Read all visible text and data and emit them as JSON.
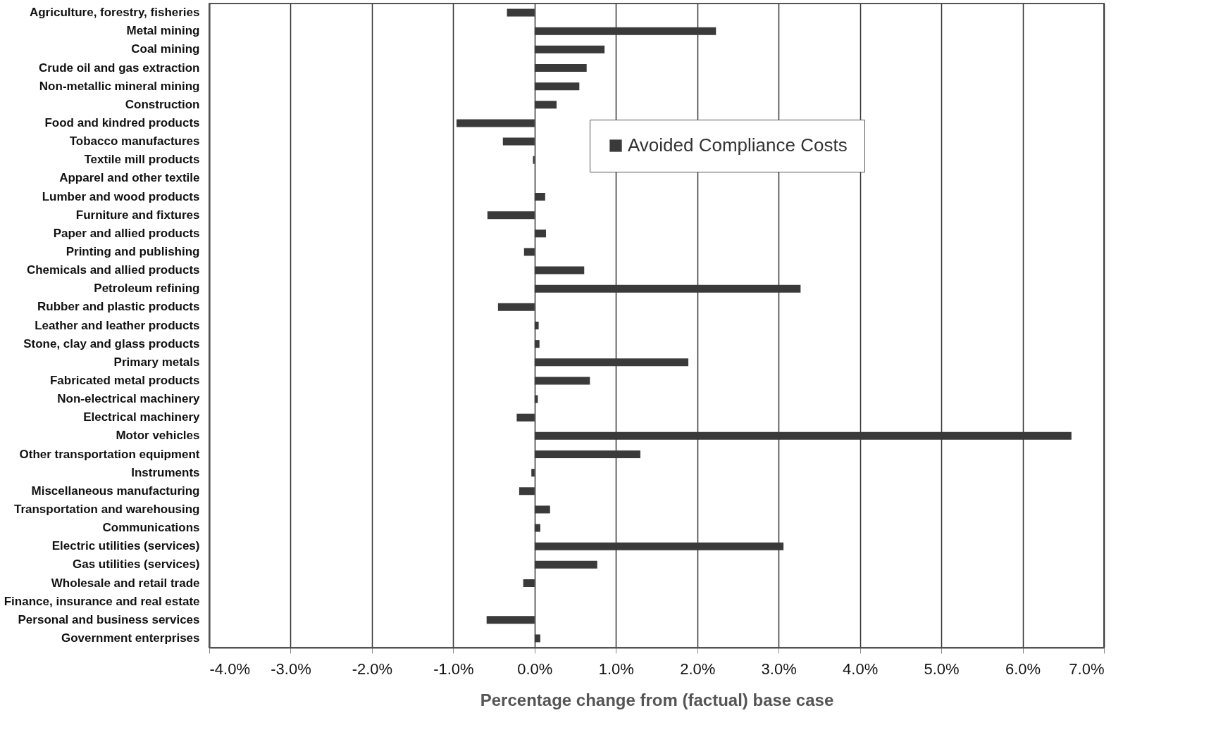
{
  "chart_data": {
    "type": "bar",
    "orientation": "horizontal",
    "xlabel": "Percentage change from (factual) base case",
    "categories": [
      "Agriculture, forestry, fisheries",
      "Metal mining",
      "Coal mining",
      "Crude oil and gas extraction",
      "Non-metallic mineral mining",
      "Construction",
      "Food and kindred products",
      "Tobacco manufactures",
      "Textile mill products",
      "Apparel and other textile",
      "Lumber and wood products",
      "Furniture and fixtures",
      "Paper and allied products",
      "Printing and publishing",
      "Chemicals and allied products",
      "Petroleum refining",
      "Rubber and plastic products",
      "Leather and leather products",
      "Stone, clay and glass products",
      "Primary metals",
      "Fabricated metal products",
      "Non-electrical machinery",
      "Electrical machinery",
      "Motor vehicles",
      "Other transportation equipment",
      "Instruments",
      "Miscellaneous manufacturing",
      "Transportation and warehousing",
      "Communications",
      "Electric utilities (services)",
      "Gas utilities (services)",
      "Wholesale and retail trade",
      "Finance, insurance and real estate",
      "Personal and business services",
      "Government enterprises"
    ],
    "series": [
      {
        "name": "Avoided Compliance Costs",
        "color": "#3a3a3a",
        "values": [
          -0.34,
          2.23,
          0.86,
          0.64,
          0.55,
          0.27,
          -0.96,
          -0.39,
          -0.02,
          0,
          0.13,
          -0.58,
          0.14,
          -0.13,
          0.61,
          3.27,
          -0.45,
          0.05,
          0.06,
          1.89,
          0.68,
          0.04,
          -0.22,
          6.6,
          1.3,
          -0.04,
          -0.19,
          0.19,
          0.07,
          3.06,
          0.77,
          -0.14,
          0,
          -0.59,
          0.07
        ]
      }
    ],
    "xlim": [
      -4,
      7
    ],
    "xticks": [
      {
        "value": -4,
        "label": "-4.0%"
      },
      {
        "value": -3,
        "label": "-3.0%"
      },
      {
        "value": -2,
        "label": "-2.0%"
      },
      {
        "value": -1,
        "label": "-1.0%"
      },
      {
        "value": 0,
        "label": "0.0%"
      },
      {
        "value": 1,
        "label": "1.0%"
      },
      {
        "value": 2,
        "label": "2.0%"
      },
      {
        "value": 3,
        "label": "3.0%"
      },
      {
        "value": 4,
        "label": "4.0%"
      },
      {
        "value": 5,
        "label": "5.0%"
      },
      {
        "value": 6,
        "label": "6.0%"
      },
      {
        "value": 7,
        "label": "7.0%"
      }
    ],
    "grid": "x",
    "legend": "top right"
  }
}
